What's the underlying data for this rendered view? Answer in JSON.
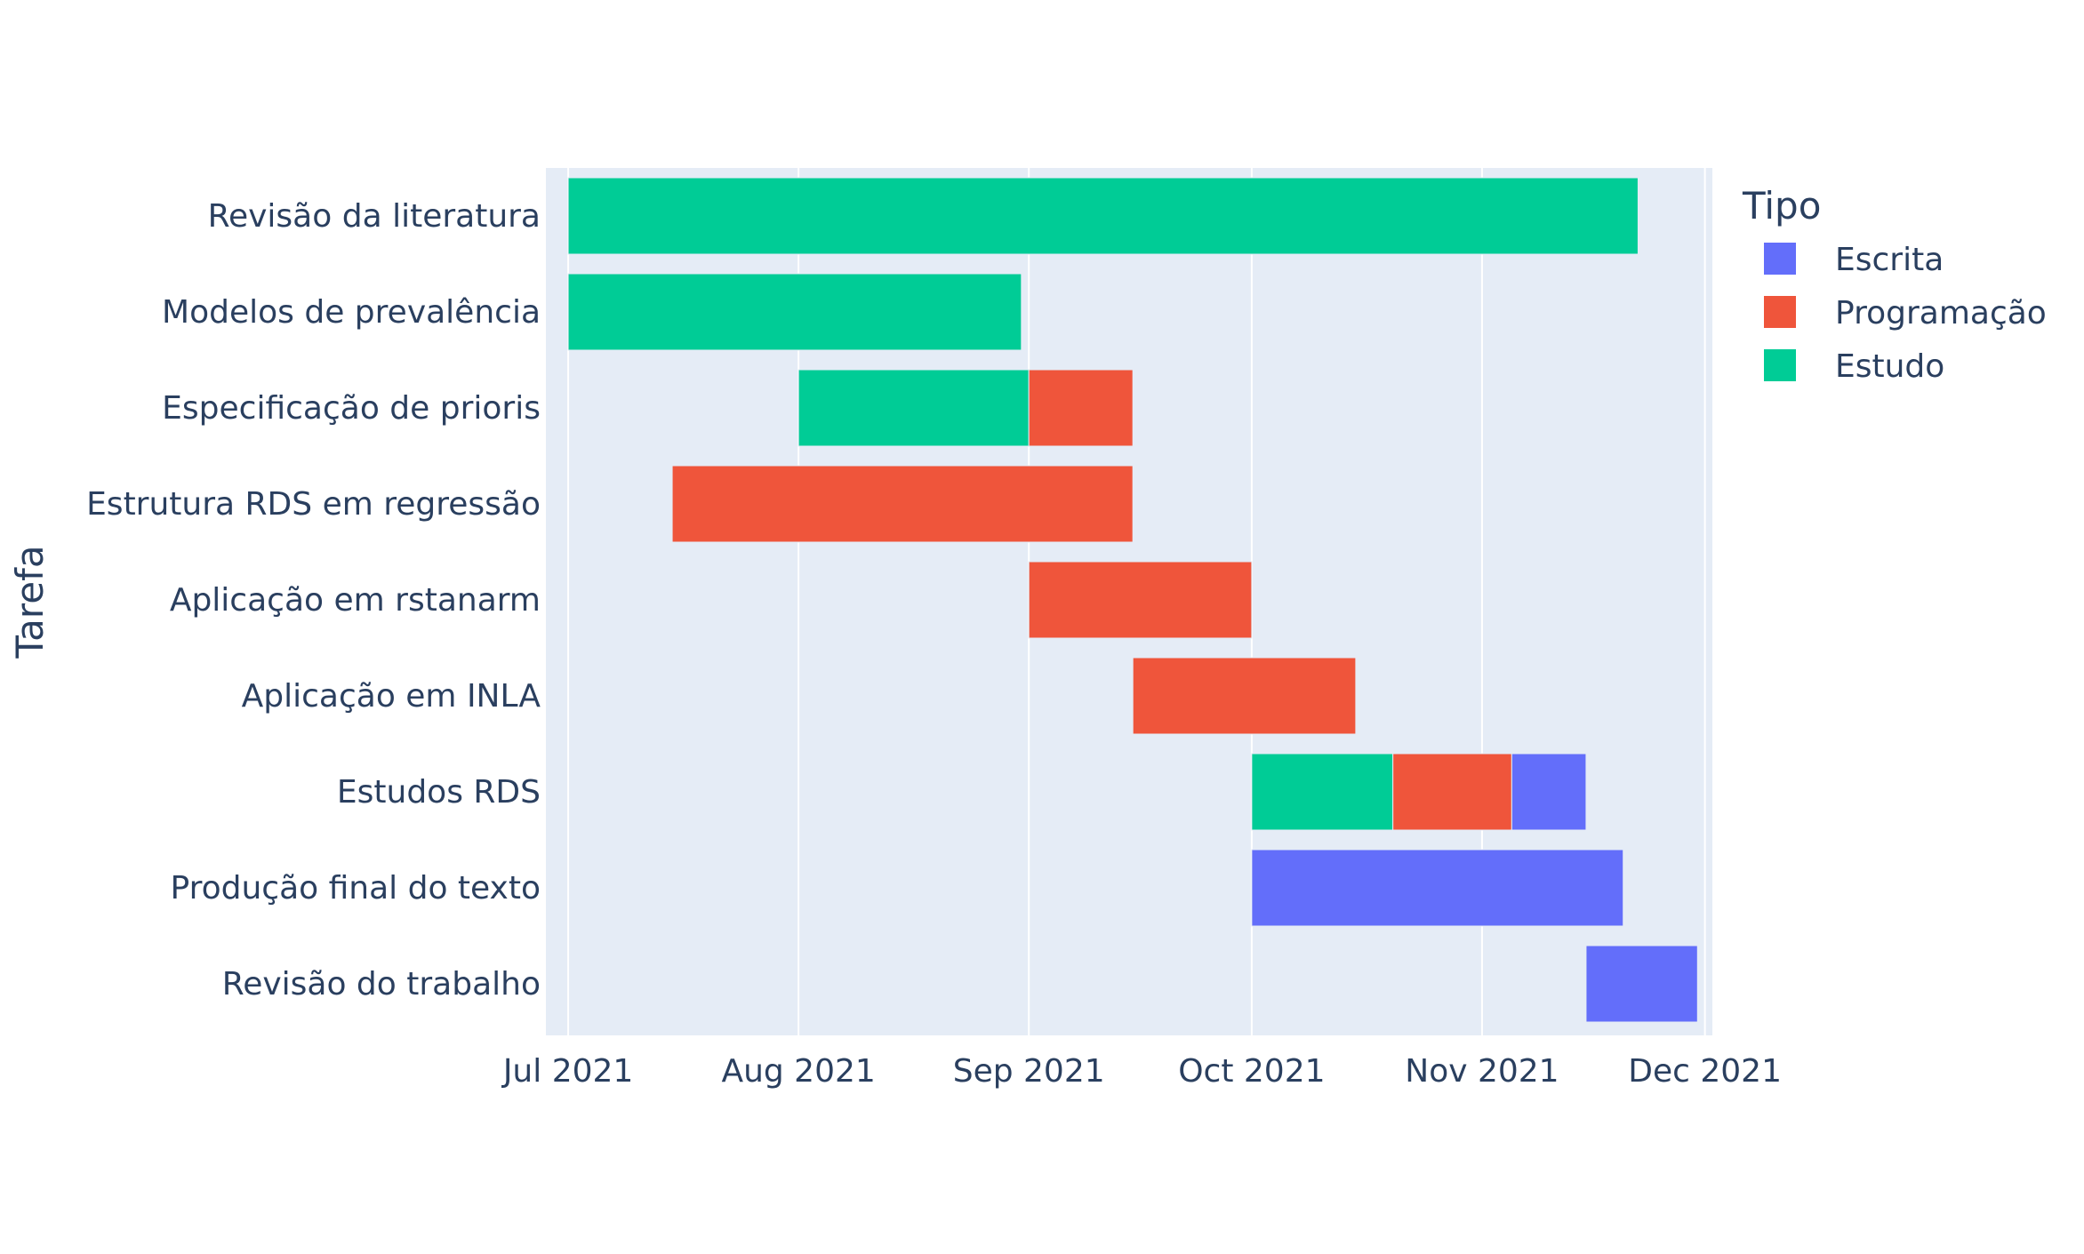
{
  "chart_data": {
    "type": "bar",
    "orientation": "horizontal",
    "subtype": "gantt",
    "title": "",
    "xlabel": "",
    "ylabel": "Tarefa",
    "x_axis_type": "date",
    "xlim": [
      "2021-06-28",
      "2021-12-02"
    ],
    "x_ticks": [
      {
        "date": "2021-07-01",
        "label": "Jul 2021"
      },
      {
        "date": "2021-08-01",
        "label": "Aug 2021"
      },
      {
        "date": "2021-09-01",
        "label": "Sep 2021"
      },
      {
        "date": "2021-10-01",
        "label": "Oct 2021"
      },
      {
        "date": "2021-11-01",
        "label": "Nov 2021"
      },
      {
        "date": "2021-12-01",
        "label": "Dec 2021"
      }
    ],
    "grid": true,
    "legend": {
      "title": "Tipo",
      "position": "right",
      "entries": [
        {
          "name": "Escrita",
          "color": "#636efa"
        },
        {
          "name": "Programação",
          "color": "#ef553b"
        },
        {
          "name": "Estudo",
          "color": "#00cc96"
        }
      ]
    },
    "plot_background": "#e5ecf6",
    "categories": [
      "Revisão da literatura",
      "Modelos de prevalência",
      "Especificação de prioris",
      "Estrutura RDS em regressão",
      "Aplicação em rstanarm",
      "Aplicação em INLA",
      "Estudos RDS",
      "Produção final do texto",
      "Revisão do trabalho"
    ],
    "tasks": [
      {
        "task": "Revisão da literatura",
        "start": "2021-07-01",
        "end": "2021-11-22",
        "type": "Estudo"
      },
      {
        "task": "Modelos de prevalência",
        "start": "2021-07-01",
        "end": "2021-08-31",
        "type": "Estudo"
      },
      {
        "task": "Especificação de prioris",
        "start": "2021-08-01",
        "end": "2021-09-01",
        "type": "Estudo"
      },
      {
        "task": "Especificação de prioris",
        "start": "2021-09-01",
        "end": "2021-09-15",
        "type": "Programação"
      },
      {
        "task": "Estrutura RDS em regressão",
        "start": "2021-07-15",
        "end": "2021-09-15",
        "type": "Programação"
      },
      {
        "task": "Aplicação em rstanarm",
        "start": "2021-09-01",
        "end": "2021-10-01",
        "type": "Programação"
      },
      {
        "task": "Aplicação em INLA",
        "start": "2021-09-15",
        "end": "2021-10-15",
        "type": "Programação"
      },
      {
        "task": "Estudos RDS",
        "start": "2021-10-01",
        "end": "2021-10-20",
        "type": "Estudo"
      },
      {
        "task": "Estudos RDS",
        "start": "2021-10-20",
        "end": "2021-11-05",
        "type": "Programação"
      },
      {
        "task": "Estudos RDS",
        "start": "2021-11-05",
        "end": "2021-11-15",
        "type": "Escrita"
      },
      {
        "task": "Produção final do texto",
        "start": "2021-10-01",
        "end": "2021-11-20",
        "type": "Escrita"
      },
      {
        "task": "Revisão do trabalho",
        "start": "2021-11-15",
        "end": "2021-11-30",
        "type": "Escrita"
      }
    ]
  }
}
